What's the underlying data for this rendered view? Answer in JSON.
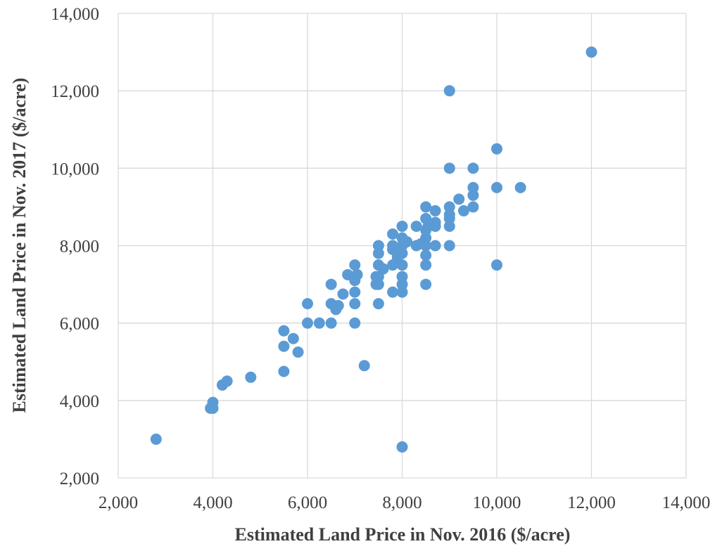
{
  "chart_data": {
    "type": "scatter",
    "title": "",
    "xlabel": "Estimated Land Price in Nov. 2016 ($/acre)",
    "ylabel": "Estimated Land Price in Nov. 2017 ($/acre)",
    "xlim": [
      2000,
      14000
    ],
    "ylim": [
      2000,
      14000
    ],
    "xticks": [
      "2,000",
      "4,000",
      "6,000",
      "8,000",
      "10,000",
      "12,000",
      "14,000"
    ],
    "yticks": [
      "2,000",
      "4,000",
      "6,000",
      "8,000",
      "10,000",
      "12,000",
      "14,000"
    ],
    "grid": true,
    "legend": "none",
    "color": "#5B9BD5",
    "points": [
      [
        2800,
        3000
      ],
      [
        3950,
        3800
      ],
      [
        4000,
        3800
      ],
      [
        4000,
        3950
      ],
      [
        4200,
        4400
      ],
      [
        4300,
        4500
      ],
      [
        4800,
        4600
      ],
      [
        5500,
        4750
      ],
      [
        5500,
        5400
      ],
      [
        5500,
        5800
      ],
      [
        5700,
        5600
      ],
      [
        5800,
        5250
      ],
      [
        6000,
        6000
      ],
      [
        6000,
        6500
      ],
      [
        6250,
        6000
      ],
      [
        6500,
        6000
      ],
      [
        6500,
        6500
      ],
      [
        6500,
        7000
      ],
      [
        6600,
        6350
      ],
      [
        6650,
        6450
      ],
      [
        6750,
        6750
      ],
      [
        6850,
        7250
      ],
      [
        7000,
        6000
      ],
      [
        7000,
        6500
      ],
      [
        7000,
        6800
      ],
      [
        7000,
        7100
      ],
      [
        7000,
        7500
      ],
      [
        7050,
        7250
      ],
      [
        7200,
        4900
      ],
      [
        7450,
        7000
      ],
      [
        7450,
        7200
      ],
      [
        7500,
        6500
      ],
      [
        7500,
        7000
      ],
      [
        7500,
        7200
      ],
      [
        7500,
        7500
      ],
      [
        7500,
        7800
      ],
      [
        7500,
        8000
      ],
      [
        7600,
        7400
      ],
      [
        7800,
        6800
      ],
      [
        7800,
        7500
      ],
      [
        7800,
        7900
      ],
      [
        7800,
        8000
      ],
      [
        7800,
        8300
      ],
      [
        7900,
        7700
      ],
      [
        8000,
        2800
      ],
      [
        8000,
        6800
      ],
      [
        8000,
        7000
      ],
      [
        8000,
        7200
      ],
      [
        8000,
        7500
      ],
      [
        8000,
        7800
      ],
      [
        8000,
        8000
      ],
      [
        8000,
        8200
      ],
      [
        8000,
        8500
      ],
      [
        8100,
        8100
      ],
      [
        8300,
        8000
      ],
      [
        8300,
        8500
      ],
      [
        8400,
        8050
      ],
      [
        8500,
        7000
      ],
      [
        8500,
        7500
      ],
      [
        8500,
        7750
      ],
      [
        8500,
        8000
      ],
      [
        8500,
        8200
      ],
      [
        8500,
        8400
      ],
      [
        8500,
        8700
      ],
      [
        8500,
        9000
      ],
      [
        8550,
        8500
      ],
      [
        8700,
        8000
      ],
      [
        8700,
        8500
      ],
      [
        8700,
        8600
      ],
      [
        8700,
        8900
      ],
      [
        9000,
        8000
      ],
      [
        9000,
        8500
      ],
      [
        9000,
        8700
      ],
      [
        9000,
        8800
      ],
      [
        9000,
        9000
      ],
      [
        9000,
        10000
      ],
      [
        9000,
        12000
      ],
      [
        9200,
        9200
      ],
      [
        9300,
        8900
      ],
      [
        9500,
        9000
      ],
      [
        9500,
        9300
      ],
      [
        9500,
        9500
      ],
      [
        9500,
        10000
      ],
      [
        10000,
        7500
      ],
      [
        10000,
        9500
      ],
      [
        10000,
        10500
      ],
      [
        10500,
        9500
      ],
      [
        12000,
        13000
      ]
    ]
  }
}
